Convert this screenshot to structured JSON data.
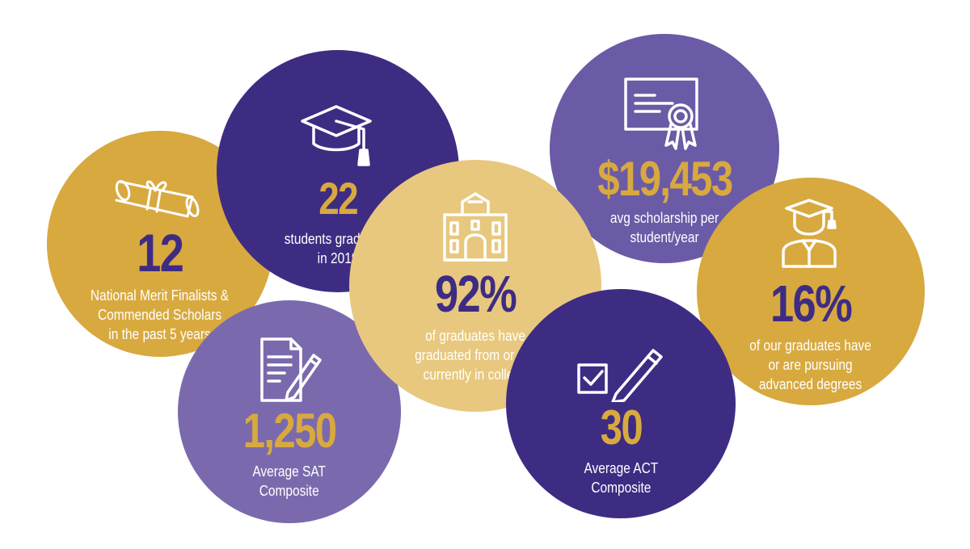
{
  "stats": [
    {
      "id": "merit",
      "value": "12",
      "label_lines": [
        "National Merit Finalists &",
        "Commended Scholars",
        "in the past 5 years"
      ],
      "icon": "diploma-scroll-icon",
      "background": "#D8A93F",
      "value_color": "#3E2C83"
    },
    {
      "id": "grads",
      "value": "22",
      "label_lines": [
        "students graduated",
        "in 2019"
      ],
      "icon": "graduation-cap-icon",
      "background": "#3E2C83",
      "value_color": "#D8A93F"
    },
    {
      "id": "sat",
      "value": "1,250",
      "label_lines": [
        "Average SAT",
        "Composite"
      ],
      "icon": "document-pencil-icon",
      "background": "#7A6AAD",
      "value_color": "#D8A93F"
    },
    {
      "id": "college",
      "value": "92%",
      "label_lines": [
        "of graduates have",
        "graduated from or are",
        "currently in college"
      ],
      "icon": "college-building-icon",
      "background": "#E8C87E",
      "value_color": "#3E2C83"
    },
    {
      "id": "scholar",
      "value": "$19,453",
      "label_lines": [
        "avg scholarship per",
        "student/year"
      ],
      "icon": "certificate-icon",
      "background": "#6B5BA6",
      "value_color": "#D8A93F"
    },
    {
      "id": "act",
      "value": "30",
      "label_lines": [
        "Average ACT",
        "Composite"
      ],
      "icon": "checkbox-pencil-icon",
      "background": "#3E2C83",
      "value_color": "#D8A93F"
    },
    {
      "id": "adv",
      "value": "16%",
      "label_lines": [
        "of our graduates have",
        "or are pursuing",
        "advanced degrees"
      ],
      "icon": "graduate-person-icon",
      "background": "#D8A93F",
      "value_color": "#3E2C83"
    }
  ]
}
